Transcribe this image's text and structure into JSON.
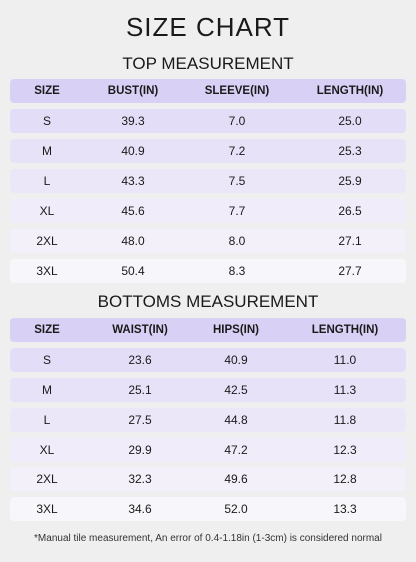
{
  "header": {
    "title": "SIZE CHART"
  },
  "tables": [
    {
      "title": "TOP MEASUREMENT",
      "columns": [
        "SIZE",
        "BUST(IN)",
        "SLEEVE(IN)",
        "LENGTH(IN)"
      ],
      "rows": [
        [
          "S",
          "39.3",
          "7.0",
          "25.0"
        ],
        [
          "M",
          "40.9",
          "7.2",
          "25.3"
        ],
        [
          "L",
          "43.3",
          "7.5",
          "25.9"
        ],
        [
          "XL",
          "45.6",
          "7.7",
          "26.5"
        ],
        [
          "2XL",
          "48.0",
          "8.0",
          "27.1"
        ],
        [
          "3XL",
          "50.4",
          "8.3",
          "27.7"
        ]
      ]
    },
    {
      "title": "BOTTOMS MEASUREMENT",
      "columns": [
        "SIZE",
        "WAIST(IN)",
        "HIPS(IN)",
        "LENGTH(IN)"
      ],
      "rows": [
        [
          "S",
          "23.6",
          "40.9",
          "11.0"
        ],
        [
          "M",
          "25.1",
          "42.5",
          "11.3"
        ],
        [
          "L",
          "27.5",
          "44.8",
          "11.8"
        ],
        [
          "XL",
          "29.9",
          "47.2",
          "12.3"
        ],
        [
          "2XL",
          "32.3",
          "49.6",
          "12.8"
        ],
        [
          "3XL",
          "34.6",
          "52.0",
          "13.3"
        ]
      ]
    }
  ],
  "footnote": "*Manual tile measurement, An error of 0.4-1.18in (1-3cm) is considered normal"
}
